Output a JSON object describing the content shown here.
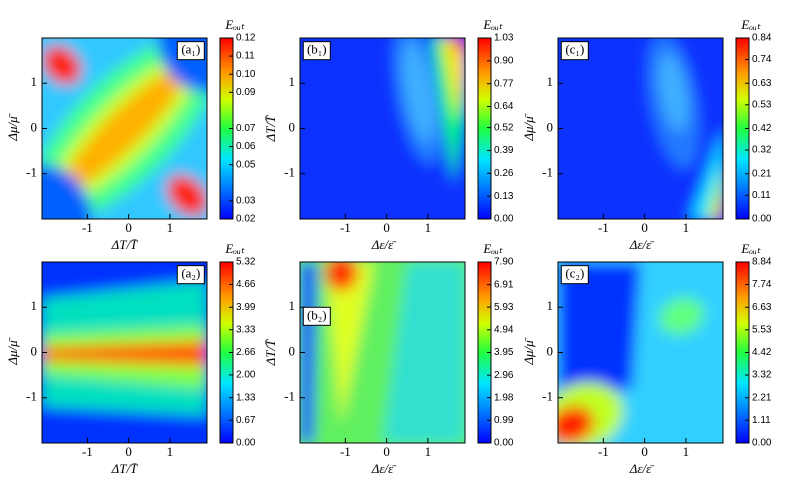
{
  "chart_data": [
    {
      "type": "heatmap",
      "panel_label": "(a₁)",
      "xlabel": "ΔT/T̄",
      "ylabel": "Δμ/μ̄",
      "colorbar_label": "Eₒᵤₜ",
      "xlim": [
        -2.1,
        1.9
      ],
      "ylim": [
        -2,
        2
      ],
      "xticks": [
        -1,
        0,
        1
      ],
      "yticks": [
        -1,
        0,
        1
      ],
      "clim": [
        0.02,
        0.12
      ],
      "cticks": [
        0.02,
        0.03,
        0.05,
        0.06,
        0.07,
        0.09,
        {
          "value": 0.1,
          "label": "0.10"
        },
        0.11,
        0.12
      ]
    },
    {
      "type": "heatmap",
      "panel_label": "(b₁)",
      "xlabel": "Δε/ε̄",
      "ylabel": "ΔT/T̄",
      "colorbar_label": "Eₒᵤₜ",
      "xlim": [
        -2.1,
        1.9
      ],
      "ylim": [
        -2,
        2
      ],
      "xticks": [
        -1,
        0,
        1
      ],
      "yticks": [
        -1,
        0,
        1
      ],
      "clim": [
        0,
        1.03
      ],
      "cticks": [
        {
          "value": 0,
          "label": "0.00"
        },
        0.13,
        0.26,
        0.39,
        0.52,
        0.64,
        0.77,
        {
          "value": 0.9,
          "label": "0.90"
        },
        1.03
      ]
    },
    {
      "type": "heatmap",
      "panel_label": "(c₁)",
      "xlabel": "Δε/ε̄",
      "ylabel": "Δμ/μ̄",
      "colorbar_label": "Eₒᵤₜ",
      "xlim": [
        -2.1,
        1.9
      ],
      "ylim": [
        -2,
        2
      ],
      "xticks": [
        -1,
        0,
        1
      ],
      "yticks": [
        -1,
        0,
        1
      ],
      "clim": [
        0,
        0.84
      ],
      "cticks": [
        {
          "value": 0,
          "label": "0.00"
        },
        0.11,
        0.21,
        0.32,
        0.42,
        0.53,
        0.63,
        0.74,
        0.84
      ]
    },
    {
      "type": "heatmap",
      "panel_label": "(a₂)",
      "xlabel": "ΔT/T̄",
      "ylabel": "Δμ/μ̄",
      "colorbar_label": "Eₒᵤₜ",
      "xlim": [
        -2.1,
        1.9
      ],
      "ylim": [
        -2,
        2
      ],
      "xticks": [
        -1,
        0,
        1
      ],
      "yticks": [
        -1,
        0,
        1
      ],
      "clim": [
        0,
        5.32
      ],
      "cticks": [
        {
          "value": 0,
          "label": "0.00"
        },
        0.67,
        1.33,
        {
          "value": 2,
          "label": "2.00"
        },
        2.66,
        3.33,
        3.99,
        4.66,
        5.32
      ]
    },
    {
      "type": "heatmap",
      "panel_label": "(b₂)",
      "xlabel": "Δε/ε̄",
      "ylabel": "ΔT/T̄",
      "colorbar_label": "Eₒᵤₜ",
      "xlim": [
        -2.1,
        1.9
      ],
      "ylim": [
        -2,
        2
      ],
      "xticks": [
        -1,
        0,
        1
      ],
      "yticks": [
        -1,
        0,
        1
      ],
      "clim": [
        0,
        7.9
      ],
      "cticks": [
        {
          "value": 0,
          "label": "0.00"
        },
        0.99,
        1.98,
        2.96,
        3.95,
        4.94,
        5.93,
        6.91,
        {
          "value": 7.9,
          "label": "7.90"
        }
      ]
    },
    {
      "type": "heatmap",
      "panel_label": "(c₂)",
      "xlabel": "Δε/ε̄",
      "ylabel": "Δμ/μ̄",
      "colorbar_label": "Eₒᵤₜ",
      "xlim": [
        -2.1,
        1.9
      ],
      "ylim": [
        -2,
        2
      ],
      "xticks": [
        -1,
        0,
        1
      ],
      "yticks": [
        -1,
        0,
        1
      ],
      "clim": [
        0,
        8.84
      ],
      "cticks": [
        {
          "value": 0,
          "label": "0.00"
        },
        1.11,
        2.21,
        3.32,
        4.42,
        5.53,
        6.63,
        7.74,
        8.84
      ]
    }
  ]
}
